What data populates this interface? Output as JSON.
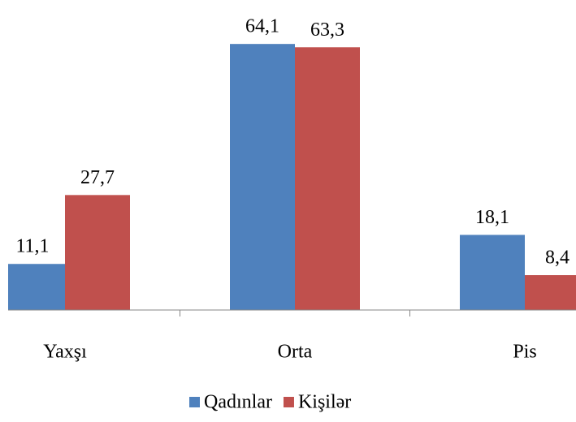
{
  "chart_data": {
    "type": "bar",
    "categories": [
      "Yaxşı",
      "Orta",
      "Pis"
    ],
    "series": [
      {
        "name": "Qadınlar",
        "color": "#4f81bd",
        "values": [
          11.1,
          64.1,
          18.1
        ],
        "value_labels": [
          "11,1",
          "64,1",
          "18,1"
        ]
      },
      {
        "name": "Kişilər",
        "color": "#c0504d",
        "values": [
          27.7,
          63.3,
          8.4
        ],
        "value_labels": [
          "27,7",
          "63,3",
          "8,4"
        ]
      }
    ],
    "ylim": [
      0,
      70
    ]
  }
}
